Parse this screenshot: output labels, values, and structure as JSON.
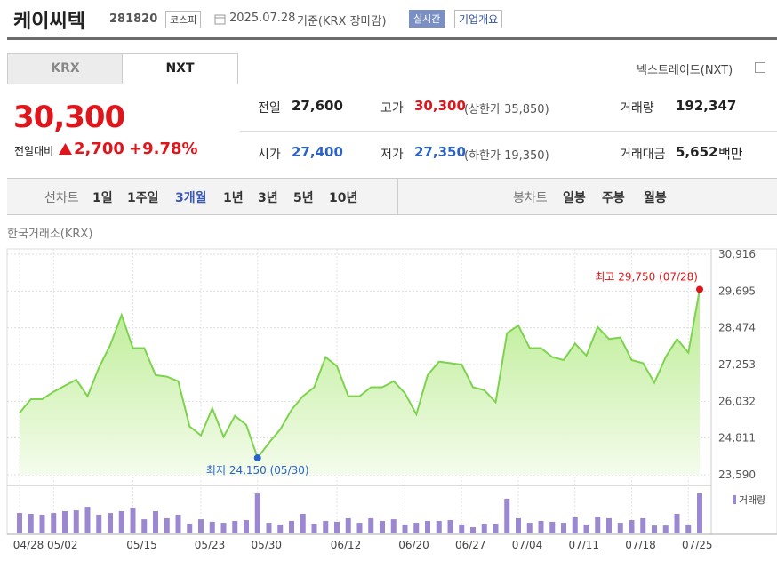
{
  "header": {
    "name": "케이씨텍",
    "code": "281820",
    "market": "코스피",
    "date": "2025.07.28",
    "basis": "기준(KRX 장마감)",
    "realtime": "실시간",
    "company": "기업개요"
  },
  "tabs": [
    "KRX",
    "NXT"
  ],
  "nxt_link": "넥스트레이드(NXT)",
  "quote": {
    "price": "30,300",
    "change_label": "전일대비",
    "change": "2,700",
    "change_pct": "+9.78%"
  },
  "summary": [
    {
      "label": "전일",
      "value": "27,600"
    },
    {
      "label": "고가",
      "value": "30,300",
      "note": "(상한가 35,850)"
    },
    {
      "label": "거래량",
      "value": "192,347"
    },
    {
      "label": "시가",
      "value": "27,400"
    },
    {
      "label": "저가",
      "value": "27,350",
      "note": "(하한가 19,350)"
    },
    {
      "label": "거래대금",
      "value": "5,652",
      "unit": "백만"
    }
  ],
  "periods": {
    "label": "선차트",
    "items": [
      "1일",
      "1주일",
      "3개월",
      "1년",
      "3년",
      "5년",
      "10년"
    ]
  },
  "candles": {
    "label": "봉차트",
    "items": [
      "일봉",
      "주봉",
      "월봉"
    ]
  },
  "chart_data": {
    "type": "line",
    "title": "한국거래소(KRX)",
    "categories": [
      "04/28",
      null,
      null,
      "05/02",
      null,
      null,
      null,
      null,
      null,
      null,
      "05/15",
      null,
      null,
      null,
      null,
      null,
      "05/23",
      null,
      null,
      null,
      null,
      "05/30",
      null,
      null,
      null,
      null,
      null,
      null,
      "06/12",
      null,
      null,
      null,
      null,
      null,
      "06/20",
      null,
      null,
      null,
      null,
      "06/27",
      null,
      null,
      null,
      null,
      "07/04",
      null,
      null,
      null,
      null,
      "07/11",
      null,
      null,
      null,
      null,
      "07/18",
      null,
      null,
      null,
      null,
      "07/25",
      null
    ],
    "values": [
      25650,
      26100,
      26100,
      26350,
      26550,
      26750,
      26200,
      27150,
      27900,
      28900,
      27800,
      27800,
      26900,
      26850,
      26700,
      25200,
      24900,
      25800,
      24850,
      25550,
      25250,
      24150,
      24650,
      25100,
      25750,
      26200,
      26500,
      27500,
      27200,
      26200,
      26200,
      26500,
      26500,
      26700,
      26300,
      25600,
      26900,
      27350,
      27300,
      27250,
      26500,
      26400,
      26000,
      28300,
      28550,
      27800,
      27800,
      27500,
      27400,
      27950,
      27550,
      28500,
      28100,
      28150,
      27400,
      27300,
      26650,
      27500,
      28100,
      27650,
      29750
    ],
    "color": "#7dd34f",
    "ylim": [
      23590,
      30916
    ],
    "yticks": [
      {
        "value": 23590,
        "label": "23,590"
      },
      {
        "value": 24811,
        "label": "24,811"
      },
      {
        "value": 26032,
        "label": "26,032"
      },
      {
        "value": 27253,
        "label": "27,253"
      },
      {
        "value": 28474,
        "label": "28,474"
      },
      {
        "value": 29695,
        "label": "29,695"
      },
      {
        "value": 30916,
        "label": "30,916"
      }
    ],
    "grid": true,
    "max_label": "최고 29,750 (07/28)",
    "min_label": "최저 24,150 (05/30)",
    "volume": {
      "name": "거래량",
      "color": "#9c88d1",
      "values": [
        98000,
        94000,
        90000,
        98000,
        107000,
        111000,
        128000,
        90000,
        98000,
        107000,
        124000,
        68000,
        107000,
        73000,
        90000,
        47000,
        68000,
        56000,
        51000,
        60000,
        64000,
        192000,
        51000,
        43000,
        60000,
        94000,
        47000,
        60000,
        56000,
        73000,
        51000,
        73000,
        60000,
        68000,
        43000,
        51000,
        60000,
        60000,
        64000,
        43000,
        30000,
        47000,
        47000,
        167000,
        73000,
        51000,
        60000,
        56000,
        51000,
        77000,
        43000,
        81000,
        73000,
        51000,
        64000,
        73000,
        38000,
        38000,
        94000,
        43000,
        192347
      ]
    }
  }
}
